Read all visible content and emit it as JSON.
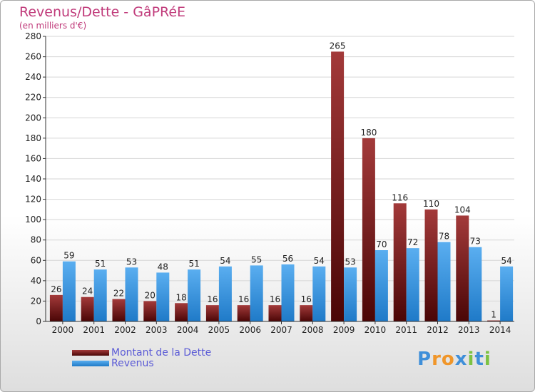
{
  "header": {
    "title": "Revenus/Dette - GâPRéE",
    "subtitle": "(en milliers d'€)"
  },
  "colors": {
    "dette_top": "#a33a3a",
    "dette_bottom": "#4a0606",
    "revenus_top": "#5aaef0",
    "revenus_bottom": "#1f7ac8",
    "title": "#c03a7a",
    "legend_text": "#5b5bd6"
  },
  "chart_data": {
    "type": "bar",
    "title": "Revenus/Dette - GâPRéE",
    "ylabel": "(en milliers d'€)",
    "xlabel": "",
    "ylim": [
      0,
      280
    ],
    "yticks": [
      0,
      20,
      40,
      60,
      80,
      100,
      120,
      140,
      160,
      180,
      200,
      220,
      240,
      260,
      280
    ],
    "grid": true,
    "legend_position": "bottom-left",
    "categories": [
      "2000",
      "2001",
      "2002",
      "2003",
      "2004",
      "2005",
      "2006",
      "2007",
      "2008",
      "2009",
      "2010",
      "2011",
      "2012",
      "2013",
      "2014"
    ],
    "series": [
      {
        "name": "Montant de la Dette",
        "values": [
          26,
          24,
          22,
          20,
          18,
          16,
          16,
          16,
          16,
          265,
          180,
          116,
          110,
          104,
          1
        ]
      },
      {
        "name": "Revenus",
        "values": [
          59,
          51,
          53,
          48,
          51,
          54,
          55,
          56,
          54,
          53,
          70,
          72,
          78,
          73,
          54
        ]
      }
    ]
  },
  "legend": {
    "items": [
      "Montant de la Dette",
      "Revenus"
    ]
  },
  "logo": {
    "letters": [
      "P",
      "r",
      "o",
      "x",
      "i",
      "t",
      "i"
    ],
    "colors": [
      "#3f8fd9",
      "#f0962a",
      "#f0962a",
      "#3f8fd9",
      "#7cc242",
      "#3f8fd9",
      "#7cc242"
    ]
  }
}
